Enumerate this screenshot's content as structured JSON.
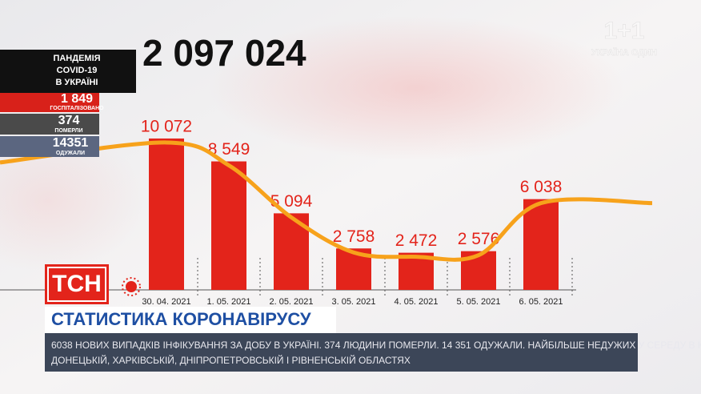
{
  "header": {
    "total": "2 097 024"
  },
  "side_panel": {
    "title": [
      "ПАНДЕМІЯ",
      "COVID-19",
      "В УКРАЇНІ"
    ],
    "stats": [
      {
        "value": "1 849",
        "label": "ГОСПІТАЛІЗОВАНО"
      },
      {
        "value": "374",
        "label": "ПОМЕРЛИ"
      },
      {
        "value": "14351",
        "label": "ОДУЖАЛИ"
      }
    ]
  },
  "chart_data": {
    "type": "bar",
    "categories": [
      "30. 04. 2021",
      "1. 05. 2021",
      "2. 05. 2021",
      "3. 05. 2021",
      "4. 05. 2021",
      "5. 05. 2021",
      "6. 05. 2021"
    ],
    "values": [
      10072,
      8549,
      5094,
      2758,
      2472,
      2576,
      6038
    ],
    "value_labels": [
      "10 072",
      "8 549",
      "5 094",
      "2 758",
      "2 472",
      "2 576",
      "6 038"
    ],
    "color": "#e3241b",
    "trend_color": "#f7a21b"
  },
  "logo": "ТСН",
  "headline": "СТАТИСТИКА КОРОНАВІРУСУ",
  "ticker": [
    "6038 НОВИХ ВИПАДКІВ ІНФІКУВАННЯ ЗА ДОБУ В УКРАЇНІ. 374 ЛЮДИНИ ПОМЕРЛИ. 14 351 ОДУЖАЛИ. НАЙБІЛЬШЕ НЕДУЖИХ У СЕРЕДУ В КИЄВІ,",
    "ДОНЕЦЬКІЙ, ХАРКІВСЬКІЙ, ДНІПРОПЕТРОВСЬКІЙ І РІВНЕНСЬКІЙ ОБЛАСТЯХ"
  ],
  "watermark": {
    "logo": "1+1",
    "sub": "УКРАЇНА ОДИН"
  }
}
